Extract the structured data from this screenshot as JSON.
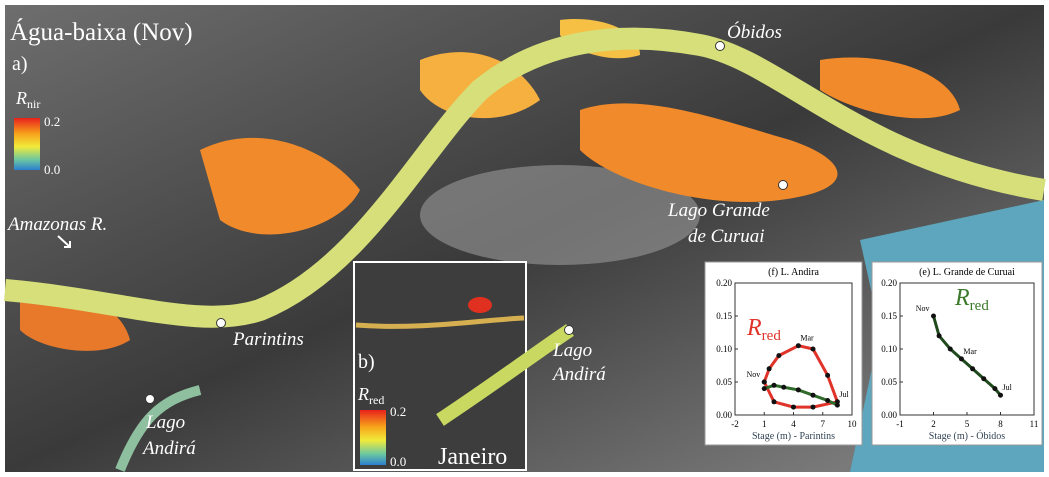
{
  "map": {
    "title": "Água-baixa (Nov)",
    "panel": "a)",
    "legend": {
      "symbol": "R",
      "subscript": "nir",
      "max": "0.2",
      "min": "0.0"
    },
    "places": {
      "obidos": "Óbidos",
      "river": "Amazonas R.",
      "curuai": [
        "Lago Grande",
        "de Curuai"
      ],
      "parintins": "Parintins",
      "andira": [
        "Lago",
        "Andirá"
      ]
    }
  },
  "inset_b": {
    "panel": "b)",
    "legend": {
      "symbol": "R",
      "subscript": "red",
      "max": "0.2",
      "min": "0.0"
    },
    "place": [
      "Lago",
      "Andirá"
    ],
    "month": "Janeiro"
  },
  "charts": [
    {
      "type": "line",
      "title": "(f) L. Andira",
      "xlabel": "Stage (m) - Parintins",
      "annotation": {
        "symbol": "R",
        "subscript": "red",
        "color": "#e0332a"
      },
      "xlim": [
        -2,
        10
      ],
      "ylim": [
        0,
        0.2
      ],
      "xticks": [
        -2,
        1,
        4,
        7,
        10
      ],
      "yticks": [
        {
          "value": 0,
          "label": "0.00"
        },
        0.05,
        {
          "value": 0.1,
          "label": "0.10"
        },
        0.15,
        {
          "value": 0.2,
          "label": "0.20"
        }
      ],
      "series": [
        {
          "color": "#e0332a",
          "x": [
            1,
            1.5,
            2.5,
            4.5,
            6,
            7.5,
            8.5,
            6,
            4,
            2,
            1
          ],
          "values": [
            0.05,
            0.07,
            0.09,
            0.105,
            0.1,
            0.06,
            0.02,
            0.012,
            0.012,
            0.02,
            0.05
          ],
          "labels": [
            "Nov",
            null,
            null,
            "Mar",
            null,
            null,
            "Jul",
            null,
            null,
            null,
            null
          ]
        },
        {
          "color": "#2f6b2a",
          "x": [
            1,
            2,
            3,
            4.5,
            6,
            7.5,
            8.5
          ],
          "values": [
            0.04,
            0.045,
            0.042,
            0.038,
            0.03,
            0.022,
            0.015
          ]
        }
      ]
    },
    {
      "type": "line",
      "title": "(e) L. Grande de Curuai",
      "xlabel": "Stage (m) - Óbidos",
      "annotation": {
        "symbol": "R",
        "subscript": "red",
        "color": "#3a7a2a"
      },
      "xlim": [
        -1,
        11
      ],
      "ylim": [
        0,
        0.2
      ],
      "xticks": [
        -1,
        2,
        5,
        8,
        11
      ],
      "yticks": [
        {
          "value": 0,
          "label": "0.00"
        },
        0.05,
        {
          "value": 0.1,
          "label": "0.10"
        },
        0.15,
        {
          "value": 0.2,
          "label": "0.20"
        }
      ],
      "series": [
        {
          "color": "#1f4a1c",
          "x": [
            2,
            2.5,
            3.5,
            4.5,
            5.5,
            6.5,
            7.5,
            8
          ],
          "values": [
            0.15,
            0.12,
            0.1,
            0.085,
            0.07,
            0.055,
            0.04,
            0.03
          ],
          "labels": [
            "Nov",
            null,
            null,
            "Mar",
            null,
            null,
            null,
            "Jul"
          ]
        }
      ]
    }
  ]
}
